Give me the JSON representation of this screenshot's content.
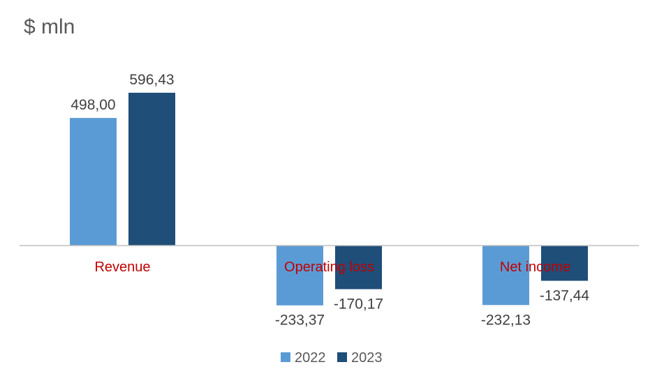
{
  "chart_data": {
    "type": "bar",
    "title": "$ mln",
    "categories": [
      "Revenue",
      "Operating loss",
      "Net income"
    ],
    "series": [
      {
        "name": "2022",
        "values": [
          498.0,
          -233.37,
          -232.13
        ],
        "labels": [
          "498,00",
          "-233,37",
          "-232,13"
        ],
        "color": "#5b9bd5"
      },
      {
        "name": "2023",
        "values": [
          596.43,
          -170.17,
          -137.44
        ],
        "labels": [
          "596,43",
          "-170,17",
          "-137,44"
        ],
        "color": "#1f4e79"
      }
    ],
    "ylim": [
      -300,
      650
    ],
    "grid": false,
    "legend_position": "bottom",
    "category_label_color": "#c00000",
    "axis_color": "#bfbfbf",
    "label_color": "#404040"
  }
}
